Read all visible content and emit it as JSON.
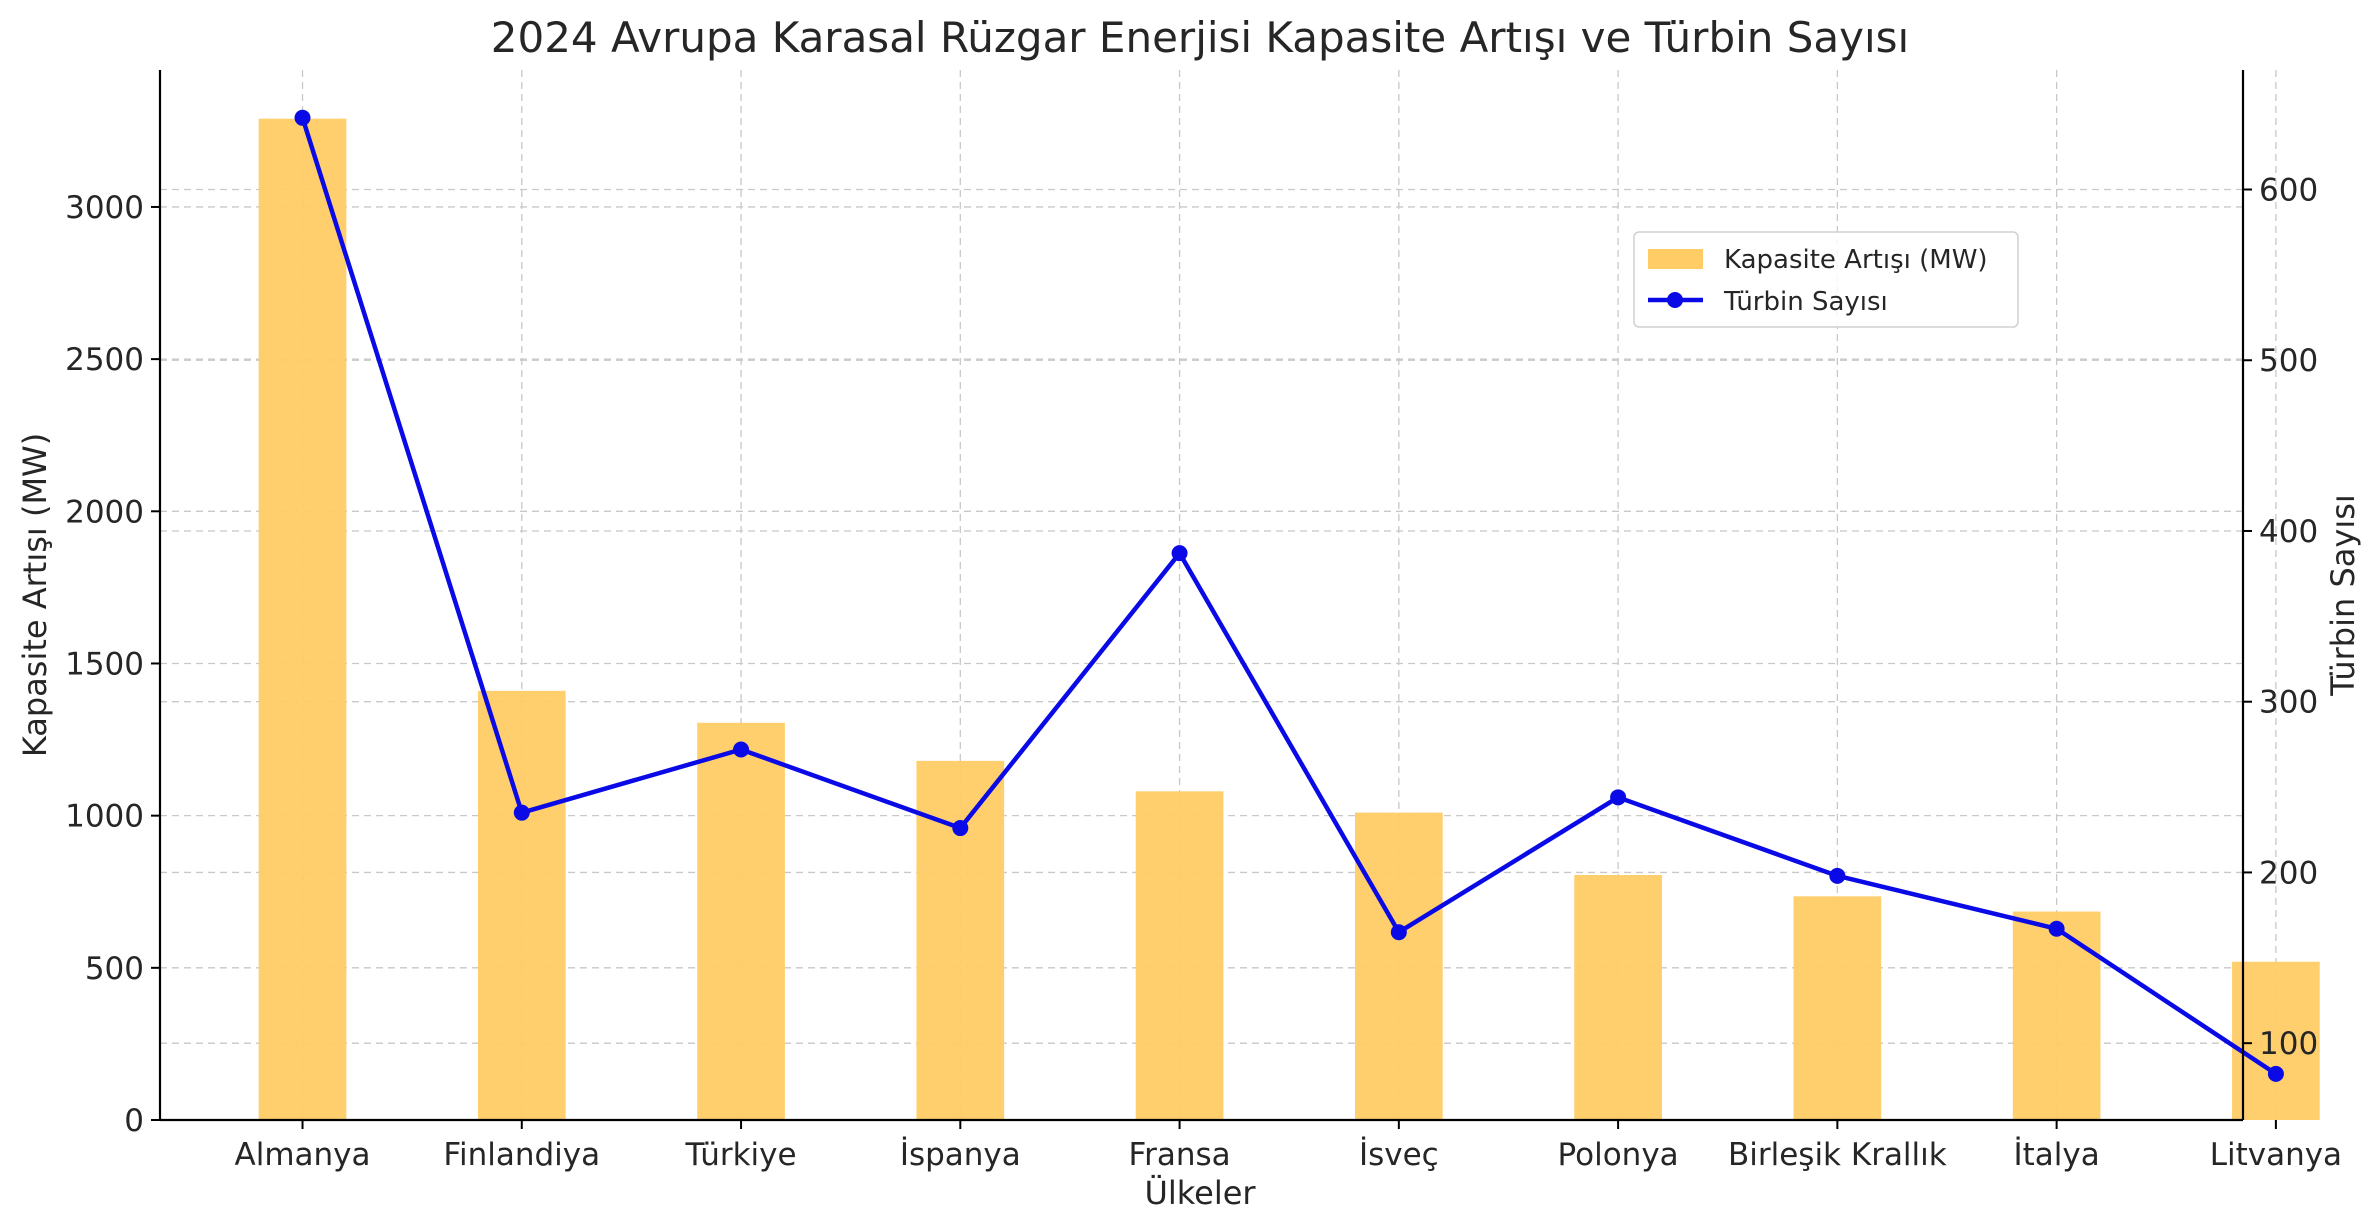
{
  "chart_data": {
    "type": "bar",
    "title": "2024 Avrupa Karasal Rüzgar Enerjisi Kapasite Artışı ve Türbin Sayısı",
    "xlabel": "Ülkeler",
    "ylabel": "Kapasite Artışı (MW)",
    "y2label": "Türbin Sayısı",
    "categories": [
      "Almanya",
      "Finlandiya",
      "Türkiye",
      "İspanya",
      "Fransa",
      "İsveç",
      "Polonya",
      "Birleşik Krallık",
      "İtalya",
      "Litvanya"
    ],
    "series": [
      {
        "name": "Kapasite Artışı (MW)",
        "type": "bar",
        "axis": "left",
        "color": "#FFCC66",
        "values": [
          3290,
          1410,
          1305,
          1180,
          1080,
          1010,
          805,
          735,
          685,
          520
        ]
      },
      {
        "name": "Türbin Sayısı",
        "type": "line",
        "axis": "right",
        "color": "#0A0AE6",
        "values": [
          642,
          235,
          272,
          226,
          387,
          165,
          244,
          198,
          167,
          82
        ]
      }
    ],
    "ylim": [
      0,
      3450
    ],
    "y2lim": [
      55,
      670
    ],
    "yticks": [
      0,
      500,
      1000,
      1500,
      2000,
      2500,
      3000
    ],
    "y2ticks": [
      100,
      200,
      300,
      400,
      500,
      600
    ],
    "grid": true,
    "legend": "top-right"
  }
}
